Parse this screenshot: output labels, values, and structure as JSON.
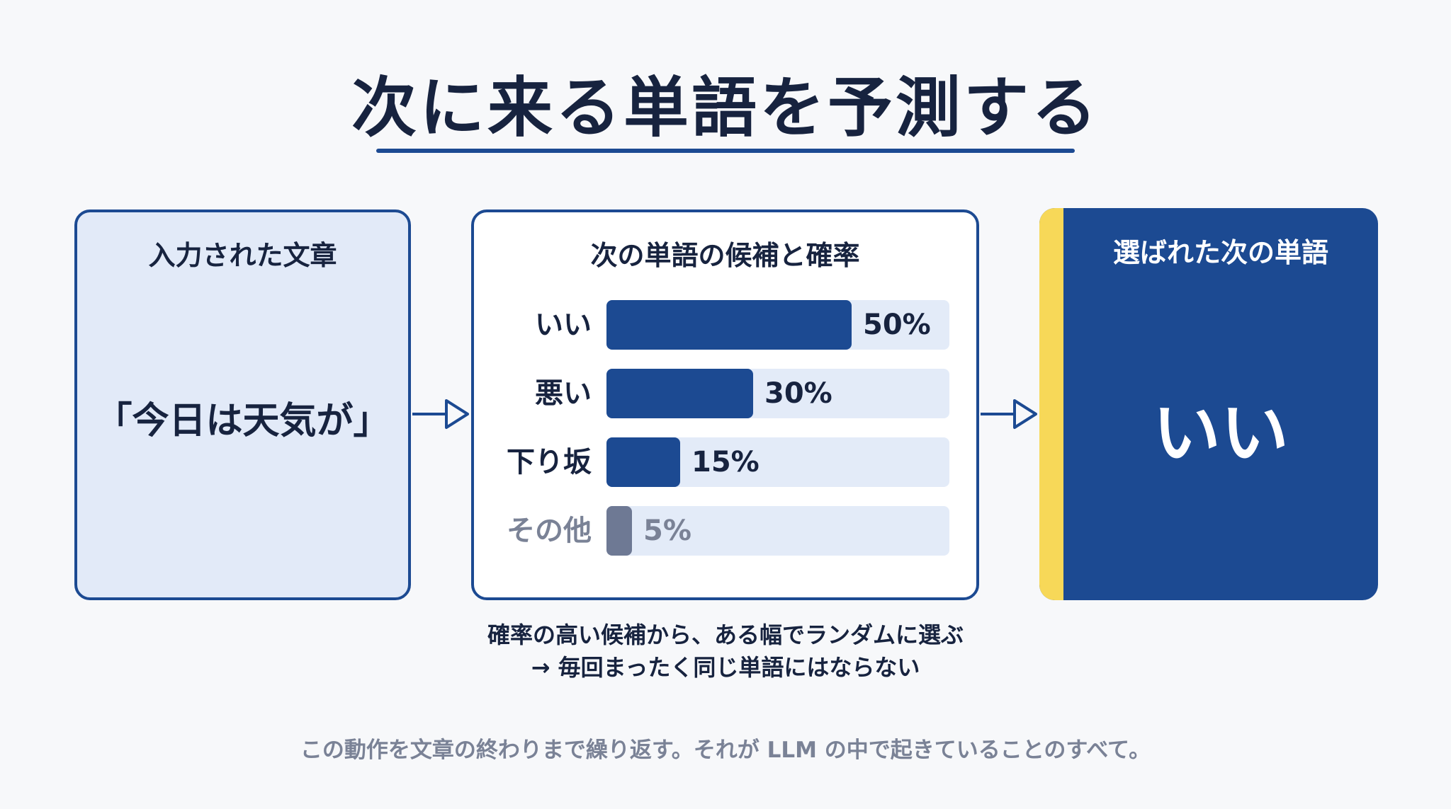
{
  "title": "次に来る単語を予測する",
  "input_panel": {
    "heading": "入力された文章",
    "text": "「今日は天気が」"
  },
  "candidates_panel": {
    "heading": "次の単語の候補と確率",
    "items": [
      {
        "label": "いい",
        "value_text": "50%",
        "value": 50
      },
      {
        "label": "悪い",
        "value_text": "30%",
        "value": 30
      },
      {
        "label": "下り坂",
        "value_text": "15%",
        "value": 15
      },
      {
        "label": "その他",
        "value_text": "5%",
        "value": 5
      }
    ]
  },
  "result_panel": {
    "heading": "選ばれた次の単語",
    "word": "いい"
  },
  "note": {
    "line1": "確率の高い候補から、ある幅でランダムに選ぶ",
    "line2": "→ 毎回まったく同じ単語にはならない"
  },
  "footer": "この動作を文章の終わりまで繰り返す。それが LLM の中で起きていることのすべて。",
  "colors": {
    "primary": "#1c4a92",
    "accent": "#f7d858",
    "muted": "#6e7994",
    "track": "#e3ebf8",
    "input_bg": "#e2eaf8"
  }
}
